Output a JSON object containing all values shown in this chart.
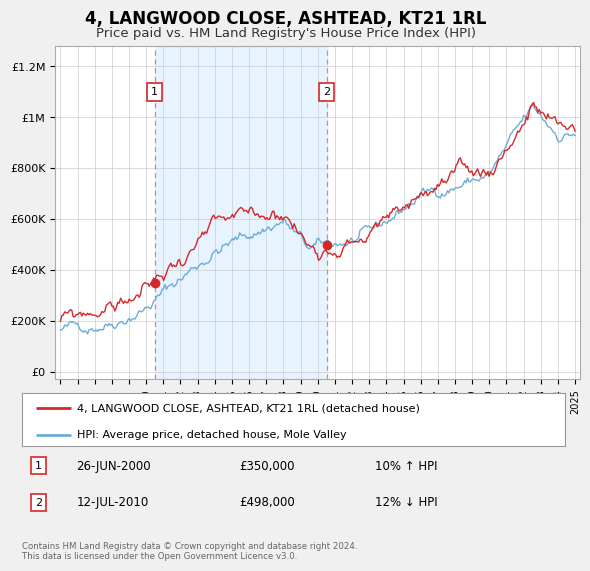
{
  "title": "4, LANGWOOD CLOSE, ASHTEAD, KT21 1RL",
  "subtitle": "Price paid vs. HM Land Registry's House Price Index (HPI)",
  "title_fontsize": 12,
  "subtitle_fontsize": 9.5,
  "ylabel_ticks": [
    "£0",
    "£200K",
    "£400K",
    "£600K",
    "£800K",
    "£1M",
    "£1.2M"
  ],
  "ytick_values": [
    0,
    200000,
    400000,
    600000,
    800000,
    1000000,
    1200000
  ],
  "ylim": [
    -30000,
    1280000
  ],
  "xlim_start": 1994.7,
  "xlim_end": 2025.3,
  "hpi_color": "#6baed6",
  "house_color": "#d62728",
  "vline_color": "#e88080",
  "shade_color": "#ddeeff",
  "marker1_year": 2000.49,
  "marker2_year": 2010.53,
  "sale1_price": 350000,
  "sale2_price": 498000,
  "legend_label1": "4, LANGWOOD CLOSE, ASHTEAD, KT21 1RL (detached house)",
  "legend_label2": "HPI: Average price, detached house, Mole Valley",
  "annotation1_num": "1",
  "annotation1_date": "26-JUN-2000",
  "annotation1_price": "£350,000",
  "annotation1_hpi": "10% ↑ HPI",
  "annotation2_num": "2",
  "annotation2_date": "12-JUL-2010",
  "annotation2_price": "£498,000",
  "annotation2_hpi": "12% ↓ HPI",
  "footer": "Contains HM Land Registry data © Crown copyright and database right 2024.\nThis data is licensed under the Open Government Licence v3.0.",
  "background_color": "#f0f0f0",
  "plot_bg_color": "#ffffff"
}
